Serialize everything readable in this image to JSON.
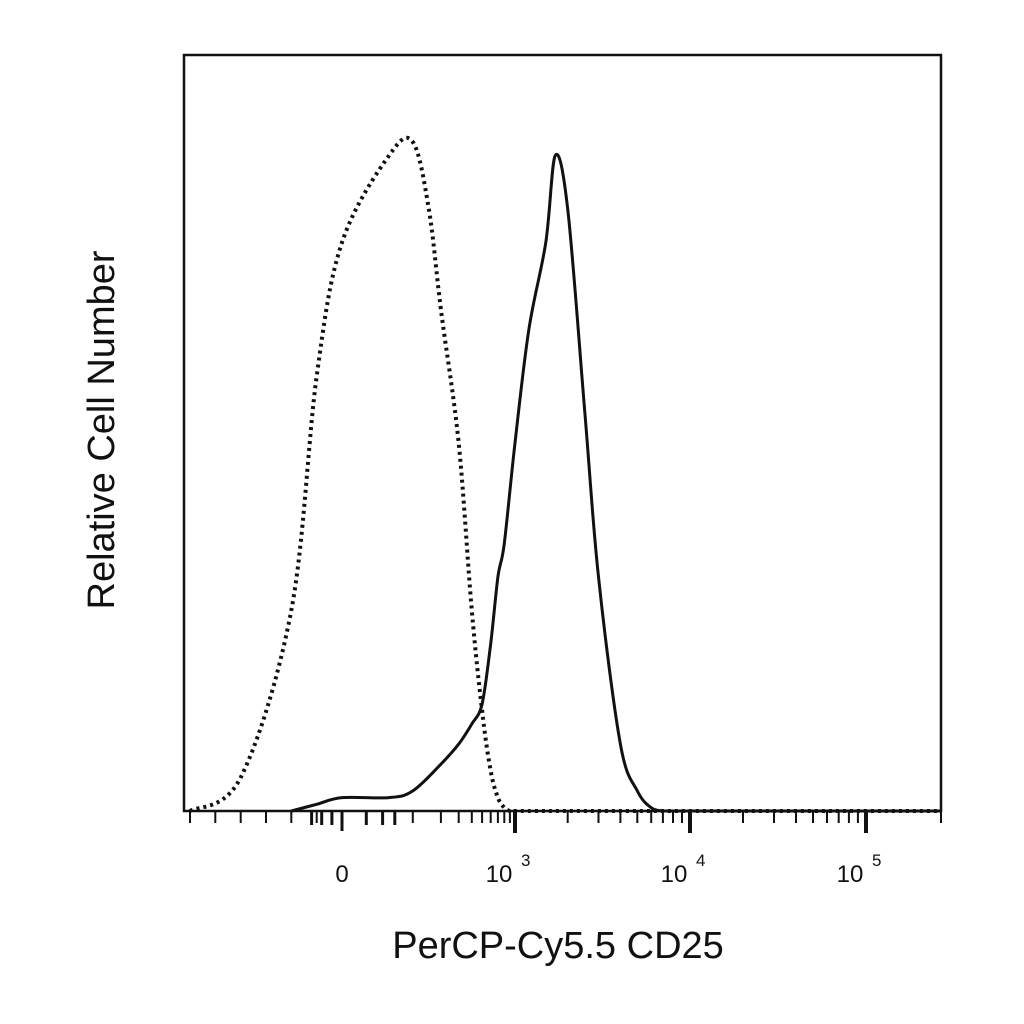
{
  "chart_data": {
    "type": "line",
    "title": "",
    "xlabel": "PerCP-Cy5.5 CD25",
    "ylabel": "Relative Cell Number",
    "x_scale": "biexponential",
    "xlim": [
      -300,
      200000
    ],
    "ylim": [
      0,
      1
    ],
    "grid": false,
    "legend": "none",
    "x_tick_labels": [
      {
        "value": 0,
        "base": "0",
        "exp": ""
      },
      {
        "value": 1000,
        "base": "10",
        "exp": "3"
      },
      {
        "value": 10000,
        "base": "10",
        "exp": "4"
      },
      {
        "value": 100000,
        "base": "10",
        "exp": "5"
      }
    ],
    "series": [
      {
        "style": "dotted",
        "color": "#111111",
        "x": [
          -300,
          -200,
          -100,
          -50,
          0,
          50,
          100,
          150,
          200,
          300,
          400,
          500,
          600,
          700,
          800,
          900,
          1000,
          1200,
          1500
        ],
        "y": [
          0.0,
          0.05,
          0.3,
          0.65,
          0.85,
          0.98,
          1.0,
          0.9,
          0.75,
          0.55,
          0.3,
          0.15,
          0.06,
          0.02,
          0.005,
          0.0,
          0.0,
          0.0,
          0.0
        ]
      },
      {
        "style": "solid",
        "color": "#111111",
        "x": [
          -100,
          -50,
          0,
          50,
          100,
          200,
          300,
          400,
          500,
          600,
          700,
          800,
          1000,
          1200,
          1500,
          1700,
          2000,
          2500,
          3000,
          4000,
          5000,
          6000,
          7000,
          8000
        ],
        "y": [
          0.0,
          0.01,
          0.02,
          0.02,
          0.03,
          0.07,
          0.1,
          0.13,
          0.16,
          0.25,
          0.35,
          0.4,
          0.55,
          0.72,
          0.85,
          0.98,
          0.9,
          0.6,
          0.35,
          0.1,
          0.03,
          0.005,
          0.0,
          0.0
        ]
      }
    ]
  }
}
